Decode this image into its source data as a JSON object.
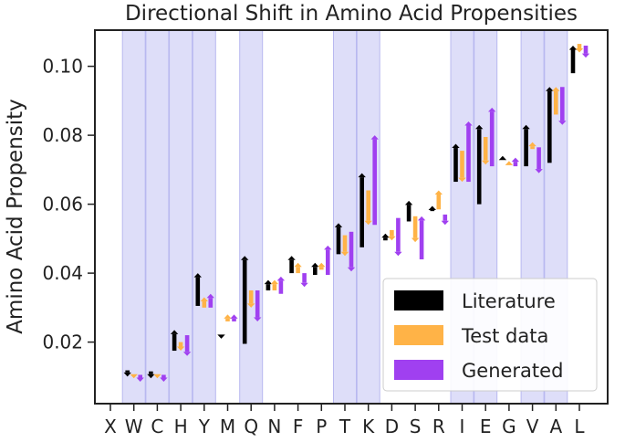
{
  "chart_data": {
    "type": "bar",
    "title": "Directional Shift in Amino Acid Propensities",
    "xlabel": "",
    "ylabel": "Amino Acid Propensity",
    "ylim": [
      0.0055,
      0.111
    ],
    "yticks": [
      0.02,
      0.04,
      0.06,
      0.08,
      0.1
    ],
    "ytick_labels": [
      "0.02",
      "0.04",
      "0.06",
      "0.08",
      "0.10"
    ],
    "categories": [
      "X",
      "W",
      "C",
      "H",
      "Y",
      "M",
      "Q",
      "N",
      "F",
      "P",
      "T",
      "K",
      "D",
      "S",
      "R",
      "I",
      "E",
      "G",
      "V",
      "A",
      "L"
    ],
    "highlighted": [
      "W",
      "C",
      "H",
      "Y",
      "Q",
      "T",
      "K",
      "I",
      "E",
      "V",
      "A"
    ],
    "highlight_color": "#d6d6f7",
    "series": [
      {
        "name": "Literature",
        "color": "#000000",
        "start": [
          null,
          0.0118,
          0.0115,
          0.0175,
          0.0305,
          0.0215,
          0.0195,
          0.035,
          0.04,
          0.0395,
          0.0455,
          0.0475,
          0.0495,
          0.055,
          0.058,
          0.0665,
          0.06,
          0.073,
          0.071,
          0.072,
          0.098
        ],
        "end": [
          null,
          0.01,
          0.0095,
          0.0235,
          0.04,
          0.021,
          0.045,
          0.038,
          0.045,
          0.043,
          0.0545,
          0.069,
          0.0515,
          0.061,
          0.0595,
          0.0775,
          0.083,
          0.074,
          0.083,
          0.094,
          0.106
        ]
      },
      {
        "name": "Test data",
        "color": "#ffb347",
        "start": [
          null,
          0.01,
          0.0105,
          0.02,
          0.03,
          0.026,
          0.035,
          0.035,
          0.04,
          0.041,
          0.051,
          0.064,
          0.0525,
          0.0565,
          0.0585,
          0.0755,
          0.0795,
          0.0715,
          0.076,
          0.086,
          0.1065
        ],
        "end": [
          null,
          0.0095,
          0.0095,
          0.0175,
          0.033,
          0.028,
          0.03,
          0.038,
          0.043,
          0.043,
          0.045,
          0.054,
          0.0495,
          0.049,
          0.064,
          0.0665,
          0.0715,
          0.0725,
          0.078,
          0.094,
          0.104
        ]
      },
      {
        "name": "Generated",
        "color": "#a040f0",
        "start": [
          null,
          0.0105,
          0.0105,
          0.022,
          0.03,
          0.026,
          0.035,
          0.034,
          0.04,
          0.0395,
          0.052,
          0.054,
          0.056,
          0.044,
          0.057,
          0.0665,
          0.071,
          0.071,
          0.0765,
          0.094,
          0.106
        ]
      },
      {
        "name": "Generated_end",
        "color": "#a040f0"
      }
    ],
    "generated_end": [
      null,
      0.0085,
      0.0085,
      0.016,
      0.034,
      0.028,
      0.026,
      0.039,
      0.036,
      0.048,
      0.0405,
      0.08,
      0.045,
      0.0565,
      0.054,
      0.084,
      0.088,
      0.0735,
      0.069,
      0.083,
      0.1025
    ],
    "legend": {
      "position": "lower-right",
      "entries": [
        "Literature",
        "Test data",
        "Generated"
      ]
    },
    "grid": false
  }
}
